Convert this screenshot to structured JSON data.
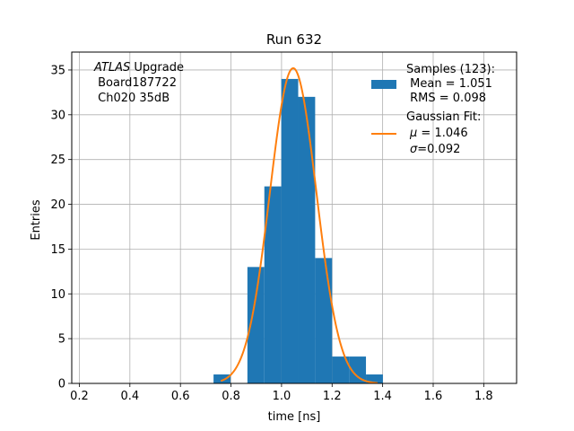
{
  "chart_data": {
    "type": "bar",
    "title": "Run 632",
    "xlabel": "time [ns]",
    "ylabel": "Entries",
    "xlim": [
      0.17,
      1.93
    ],
    "ylim": [
      0,
      37
    ],
    "xticks": [
      "0.2",
      "0.4",
      "0.6",
      "0.8",
      "1.0",
      "1.2",
      "1.4",
      "1.6",
      "1.8"
    ],
    "yticks": [
      "0",
      "5",
      "10",
      "15",
      "20",
      "25",
      "30",
      "35"
    ],
    "grid": true,
    "bins": [
      {
        "x0": 0.731,
        "x1": 0.798,
        "count": 1
      },
      {
        "x0": 0.798,
        "x1": 0.865,
        "count": 0
      },
      {
        "x0": 0.865,
        "x1": 0.932,
        "count": 13
      },
      {
        "x0": 0.932,
        "x1": 0.999,
        "count": 22
      },
      {
        "x0": 0.999,
        "x1": 1.066,
        "count": 34
      },
      {
        "x0": 1.066,
        "x1": 1.133,
        "count": 32
      },
      {
        "x0": 1.133,
        "x1": 1.2,
        "count": 14
      },
      {
        "x0": 1.2,
        "x1": 1.267,
        "count": 3
      },
      {
        "x0": 1.267,
        "x1": 1.334,
        "count": 3
      },
      {
        "x0": 1.334,
        "x1": 1.401,
        "count": 1
      }
    ],
    "fit": {
      "type": "gaussian",
      "mu": 1.046,
      "sigma": 0.092,
      "amplitude": 35.2,
      "x_range": [
        0.76,
        1.38
      ]
    },
    "colors": {
      "histogram": "#1f77b4",
      "fit": "#ff7f0e",
      "grid": "#b0b0b0"
    },
    "annotation": {
      "line1_italic": "ATLAS",
      "line1_rest": " Upgrade",
      "line2": " Board187722",
      "line3": " Ch020 35dB"
    },
    "legend": {
      "placement": "top-right",
      "samples": {
        "line1": "Samples (123):",
        "line2": " Mean = 1.051",
        "line3": " RMS = 0.098"
      },
      "fit": {
        "line1": "Gaussian Fit:",
        "line2_symbol": "μ",
        "line2_rest": " = 1.046",
        "line3_symbol": "σ",
        "line3_rest": "=0.092"
      }
    }
  }
}
